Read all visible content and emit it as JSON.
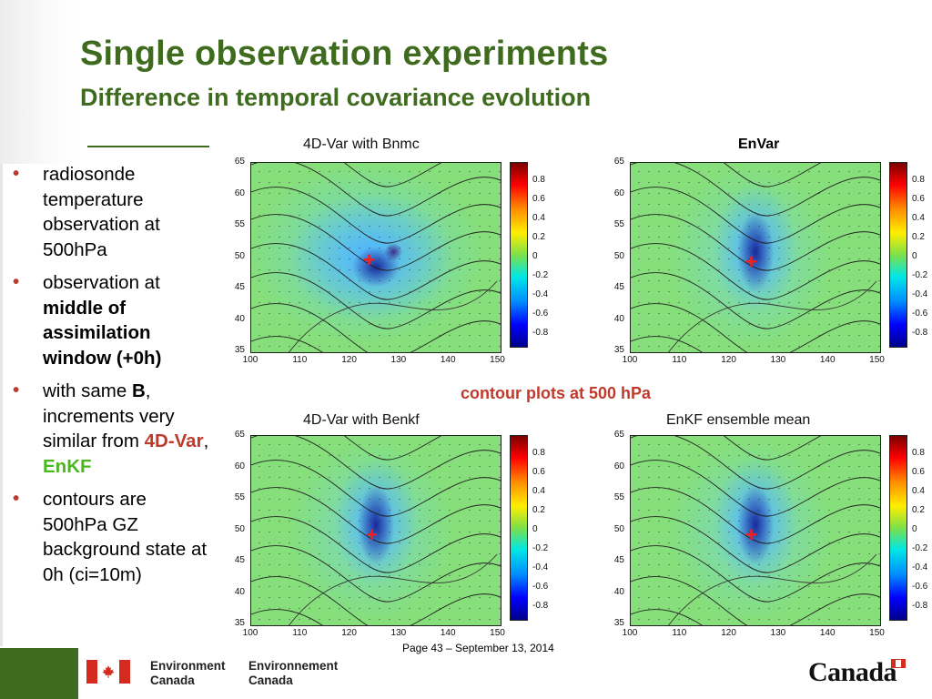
{
  "slide": {
    "title": "Single observation experiments",
    "subtitle": "Difference in temporal covariance evolution"
  },
  "bullets": [
    {
      "parts": [
        {
          "text": "radiosonde temperature observation at 500hPa",
          "style": "plain"
        }
      ]
    },
    {
      "parts": [
        {
          "text": "observation at ",
          "style": "plain"
        },
        {
          "text": "middle of assimilation window (+0h)",
          "style": "bold"
        }
      ]
    },
    {
      "parts": [
        {
          "text": "with same ",
          "style": "plain"
        },
        {
          "text": "B",
          "style": "bold"
        },
        {
          "text": ", increments very similar from ",
          "style": "plain"
        },
        {
          "text": "4D-Var",
          "style": "red"
        },
        {
          "text": ", ",
          "style": "plain"
        },
        {
          "text": "EnKF",
          "style": "green"
        }
      ]
    },
    {
      "parts": [
        {
          "text": "contours are 500hPa GZ background state at 0h (ci=10m)",
          "style": "plain"
        }
      ]
    }
  ],
  "bullet_glyph": "•",
  "plots": {
    "top_left_title": "4D-Var with Bnmc",
    "top_right_label": "EnVar",
    "bottom_left_title": "4D-Var with Benkf",
    "bottom_right_title": "EnKF ensemble mean",
    "note": "contour plots at 500 hPa",
    "marker": "+"
  },
  "axes": {
    "y_ticks": [
      "65",
      "60",
      "55",
      "50",
      "45",
      "40",
      "35"
    ],
    "x_ticks": [
      "100",
      "110",
      "120",
      "130",
      "140",
      "150"
    ]
  },
  "colorbar": {
    "ticks": [
      "0.8",
      "0.6",
      "0.4",
      "0.2",
      "0",
      "-0.2",
      "-0.4",
      "-0.6",
      "-0.8"
    ],
    "colors": [
      "#7a0000",
      "#ff0000",
      "#ff8c00",
      "#ffee00",
      "#7ee04a",
      "#00e6e6",
      "#0090ff",
      "#0000ff",
      "#00008a"
    ]
  },
  "footer": {
    "page_note": "Page 43 – September 13, 2014",
    "dept_en_1": "Environment",
    "dept_en_2": "Canada",
    "dept_fr_1": "Environnement",
    "dept_fr_2": "Canada",
    "wordmark": "Canada"
  },
  "colors": {
    "title_green": "#3f6b1e",
    "accent_red": "#c0392b",
    "enkf_green": "#49b81e",
    "flag_red": "#d52b1e"
  }
}
